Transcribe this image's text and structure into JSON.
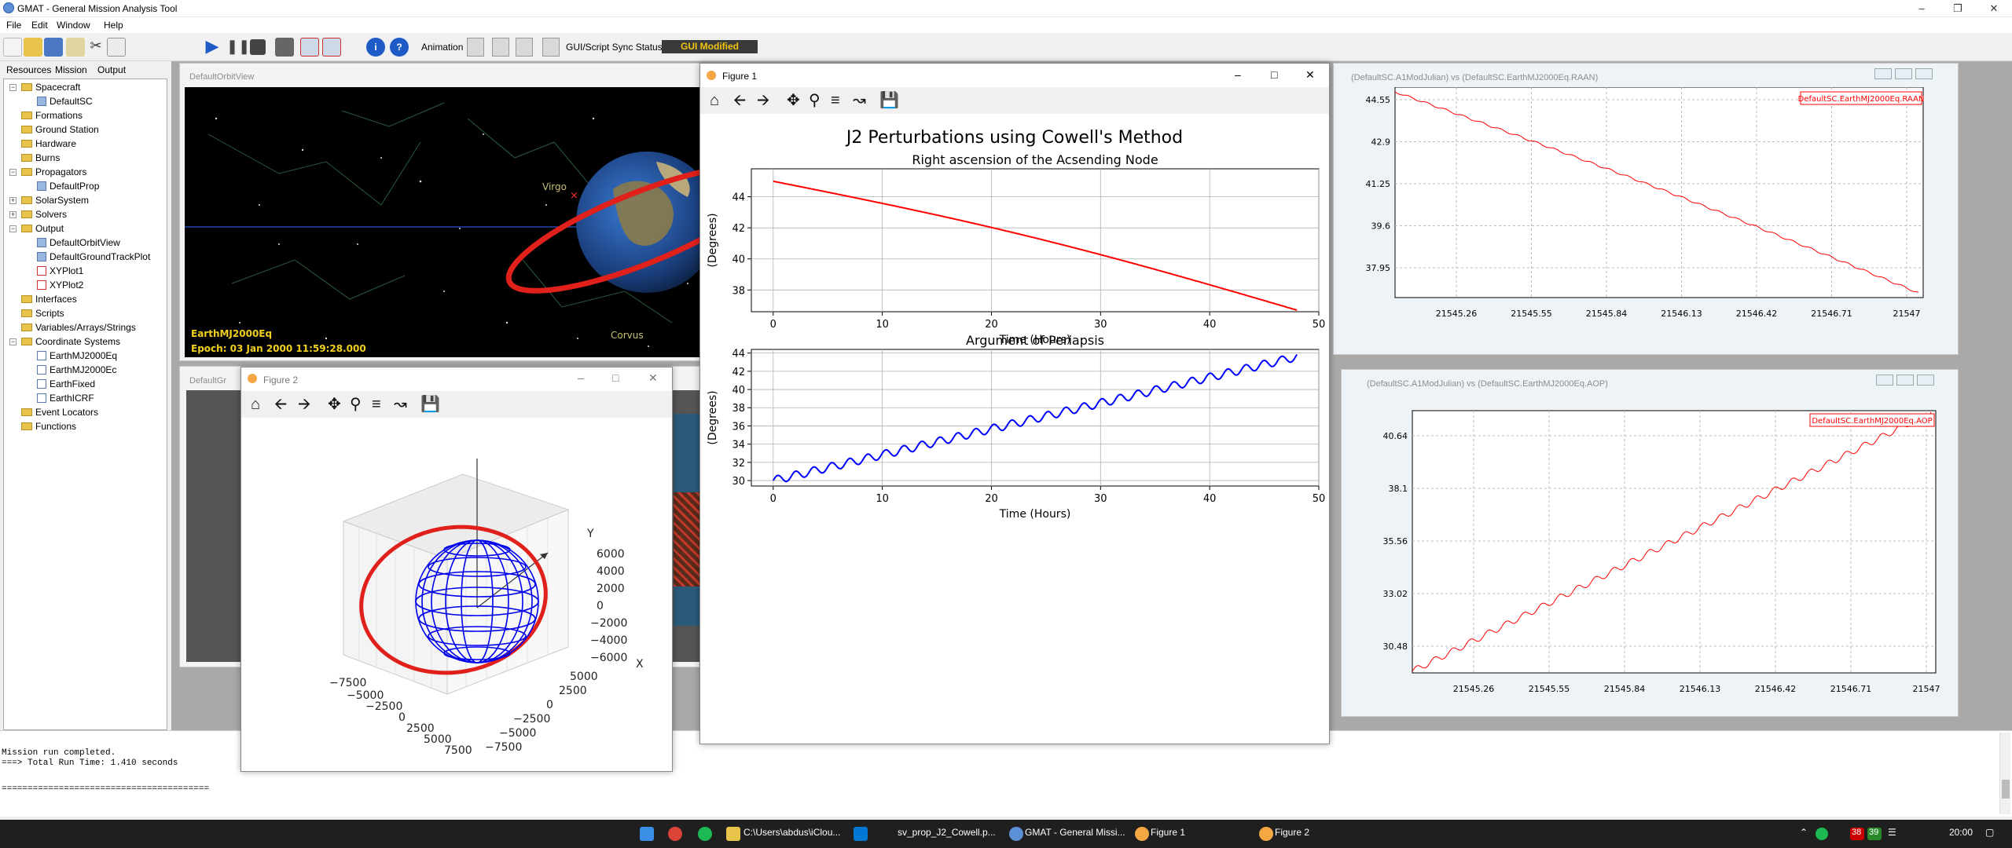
{
  "app": {
    "title": "GMAT - General Mission Analysis Tool",
    "menu": [
      "File",
      "Edit",
      "Window",
      "Help"
    ],
    "animation_label": "Animation",
    "sync_label": "GUI/Script Sync Status:",
    "sync_status": "GUI Modified"
  },
  "left_tabs": [
    "Resources",
    "Mission",
    "Output"
  ],
  "tree": {
    "spacecraft": "Spacecraft",
    "defaultsc": "DefaultSC",
    "formations": "Formations",
    "groundstation": "Ground Station",
    "hardware": "Hardware",
    "burns": "Burns",
    "propagators": "Propagators",
    "defaultprop": "DefaultProp",
    "solarsystem": "SolarSystem",
    "solvers": "Solvers",
    "output": "Output",
    "orbitview": "DefaultOrbitView",
    "groundtrack": "DefaultGroundTrackPlot",
    "xyplot1": "XYPlot1",
    "xyplot2": "XYPlot2",
    "interfaces": "Interfaces",
    "scripts": "Scripts",
    "variables": "Variables/Arrays/Strings",
    "coordsys": "Coordinate Systems",
    "cs1": "EarthMJ2000Eq",
    "cs2": "EarthMJ2000Ec",
    "cs3": "EarthFixed",
    "cs4": "EarthICRF",
    "eventlocators": "Event Locators",
    "functions": "Functions"
  },
  "orbitview": {
    "title": "DefaultOrbitView",
    "coord": "EarthMJ2000Eq",
    "epoch": "Epoch: 03 Jan 2000 11:59:28.000",
    "star_labels": [
      "Virgo",
      "Corvus"
    ],
    "groundtrack_title": "DefaultGr"
  },
  "xyplot_raan": {
    "title": "(DefaultSC.A1ModJulian) vs (DefaultSC.EarthMJ2000Eq.RAAN)",
    "legend": "DefaultSC.EarthMJ2000Eq.RAAN",
    "yticks": [
      "44.55",
      "42.9",
      "41.25",
      "39.6",
      "37.95"
    ],
    "xticks": [
      "21545.26",
      "21545.55",
      "21545.84",
      "21546.13",
      "21546.42",
      "21546.71",
      "21547"
    ],
    "color": "#ff0000"
  },
  "xyplot_aop": {
    "title": "(DefaultSC.A1ModJulian) vs (DefaultSC.EarthMJ2000Eq.AOP)",
    "legend": "DefaultSC.EarthMJ2000Eq.AOP",
    "yticks": [
      "40.64",
      "38.1",
      "35.56",
      "33.02",
      "30.48"
    ],
    "xticks": [
      "21545.26",
      "21545.55",
      "21545.84",
      "21546.13",
      "21546.42",
      "21546.71",
      "21547"
    ],
    "color": "#ff0000"
  },
  "figure1": {
    "window_title": "Figure 1",
    "suptitle": "J2 Perturbations using Cowell's Method",
    "chart_data": [
      {
        "type": "line",
        "title": "Right ascension of the Acsending Node",
        "xlabel": "Time (Hours)",
        "ylabel": "(Degrees)",
        "xlim": [
          -2,
          50
        ],
        "ylim": [
          36.6,
          45.8
        ],
        "xticks": [
          0,
          10,
          20,
          30,
          40,
          50
        ],
        "yticks": [
          38,
          40,
          42,
          44
        ],
        "grid": true,
        "series": [
          {
            "color": "#ff0000",
            "x": [
              0,
              48
            ],
            "y": [
              45.0,
              36.7
            ],
            "curve": 0.5
          }
        ]
      },
      {
        "type": "line",
        "title": "Argument of Periapsis",
        "xlabel": "Time (Hours)",
        "ylabel": "(Degrees)",
        "xlim": [
          -2,
          50
        ],
        "ylim": [
          29.4,
          44.4
        ],
        "xticks": [
          0,
          10,
          20,
          30,
          40,
          50
        ],
        "yticks": [
          30,
          32,
          34,
          36,
          38,
          40,
          42,
          44
        ],
        "grid": true,
        "series": [
          {
            "color": "#0000ff",
            "x": [
              0,
              48
            ],
            "y": [
              30.0,
              43.6
            ],
            "ripple": 0.45,
            "period_hours": 1.65
          }
        ]
      }
    ]
  },
  "figure2": {
    "window_title": "Figure 2",
    "z_ticks": [
      "6000",
      "4000",
      "2000",
      "0",
      "−2000",
      "−4000",
      "−6000"
    ],
    "x_ticks": [
      "−7500",
      "−5000",
      "−2500",
      "0",
      "2500",
      "5000",
      "7500"
    ],
    "y_ticks": [
      "5000",
      "2500",
      "0",
      "−2500",
      "−5000",
      "−7500"
    ],
    "x_axis": "X",
    "y_axis": "Y"
  },
  "output": {
    "lines": [
      "Mission run completed.",
      "===> Total Run Time: 1.410 seconds",
      "",
      "========================================"
    ]
  },
  "taskbar": {
    "items": [
      "C:\\Users\\abdus\\iClou...",
      "sv_prop_J2_Cowell.p...",
      "GMAT - General Missi...",
      "Figure 1",
      "Figure 2"
    ],
    "badge1": "38",
    "badge2": "39",
    "clock": "20:00"
  }
}
